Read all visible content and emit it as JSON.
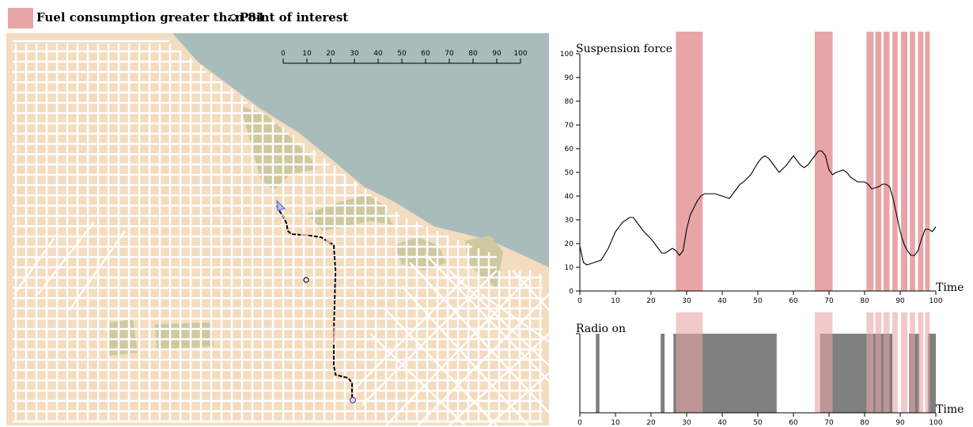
{
  "legend": {
    "fuel_label": "Fuel consumption greater than 84",
    "poi_label": "Point of interest",
    "fuel_color": "#e8a5a7"
  },
  "map": {
    "land_color": "#f3dcc0",
    "water_color": "#a9bcbc",
    "park_color": "#cfc9a0",
    "street_color": "#ffffff",
    "route_color": "#000000",
    "scale": {
      "ticks": [
        "0",
        "10",
        "20",
        "30",
        "40",
        "50",
        "60",
        "70",
        "80",
        "90",
        "100"
      ]
    }
  },
  "chart_data": [
    {
      "type": "line",
      "ylabel": "Suspension force",
      "xlabel": "Time",
      "xlim": [
        0,
        100
      ],
      "ylim": [
        0,
        100
      ],
      "xticks": [
        0,
        10,
        20,
        30,
        40,
        50,
        60,
        70,
        80,
        90,
        100
      ],
      "yticks": [
        0,
        10,
        20,
        30,
        40,
        50,
        60,
        70,
        80,
        90,
        100
      ],
      "series": [
        {
          "x": [
            0,
            1,
            2,
            4,
            6,
            8,
            10,
            12,
            14,
            15,
            16,
            18,
            20,
            22,
            23,
            24,
            25,
            26,
            27,
            28,
            29,
            30,
            31,
            32,
            33,
            34,
            35,
            36,
            38,
            40,
            42,
            44,
            45,
            46,
            48,
            50,
            51,
            52,
            53,
            55,
            56,
            58,
            60,
            62,
            63,
            64,
            66,
            67,
            68,
            69,
            70,
            71,
            72,
            74,
            75,
            76,
            78,
            80,
            81,
            82,
            84,
            85,
            86,
            87,
            88,
            90,
            91,
            92,
            93,
            94,
            95,
            96,
            97,
            98,
            99,
            100
          ],
          "y": [
            19,
            12,
            11,
            12,
            13,
            18,
            25,
            29,
            31,
            31,
            29,
            25,
            22,
            18,
            16,
            16,
            17,
            18,
            17,
            15,
            17,
            26,
            32,
            35,
            38,
            40,
            41,
            41,
            41,
            40,
            39,
            43,
            45,
            46,
            49,
            54,
            56,
            57,
            56,
            52,
            50,
            53,
            57,
            53,
            52,
            53,
            57,
            59,
            59,
            57,
            51,
            49,
            50,
            51,
            50,
            48,
            46,
            46,
            45,
            43,
            44,
            45,
            45,
            44,
            39,
            25,
            20,
            17,
            15,
            15,
            17,
            22,
            26,
            26,
            25,
            27
          ]
        }
      ],
      "highlight_bands": [
        [
          27,
          34.5
        ],
        [
          66,
          71
        ],
        [
          80.5,
          82.5
        ],
        [
          83,
          84.7
        ],
        [
          85.3,
          87
        ],
        [
          87.8,
          89.3
        ],
        [
          90.2,
          92
        ],
        [
          92.7,
          94.2
        ],
        [
          95,
          96.5
        ],
        [
          97,
          98.3
        ]
      ]
    },
    {
      "type": "area",
      "ylabel": "Radio on",
      "xlabel": "Time",
      "xlim": [
        0,
        100
      ],
      "xticks": [
        0,
        10,
        20,
        30,
        40,
        50,
        60,
        70,
        80,
        90,
        100
      ],
      "on_intervals": [
        [
          4.5,
          5.5
        ],
        [
          22.7,
          23.8
        ],
        [
          26.3,
          55.3
        ],
        [
          67.5,
          87.8
        ],
        [
          92.5,
          95.4
        ],
        [
          97.8,
          100
        ]
      ],
      "on_color": "#7f7f7f",
      "highlight_bands": [
        [
          27,
          34.5
        ],
        [
          66,
          71
        ],
        [
          80.5,
          82.5
        ],
        [
          83,
          84.7
        ],
        [
          85.3,
          87
        ],
        [
          87.8,
          89.3
        ],
        [
          90.2,
          92
        ],
        [
          92.7,
          94.2
        ],
        [
          95,
          96.5
        ],
        [
          97,
          98.3
        ]
      ]
    }
  ]
}
